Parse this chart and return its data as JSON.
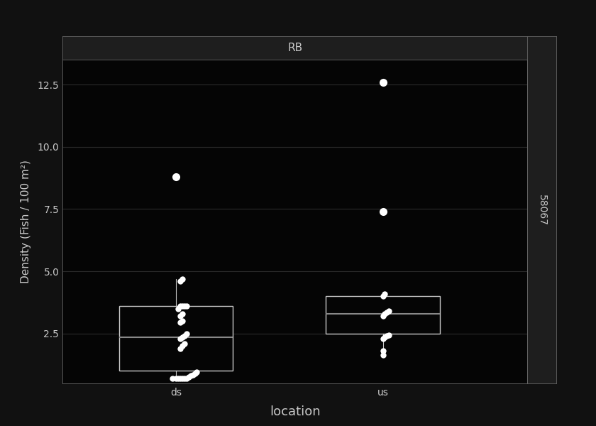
{
  "title_strip": "RB",
  "right_strip": "58067",
  "xlabel": "location",
  "ylabel": "Density (Fish / 100 m²)",
  "categories": [
    "ds",
    "us"
  ],
  "ylim": [
    0.5,
    13.5
  ],
  "yticks": [
    2.5,
    5.0,
    7.5,
    10.0,
    12.5
  ],
  "background_color": "#111111",
  "plot_bg_color": "#050505",
  "box_color": "#c8c8c8",
  "median_color": "#888888",
  "whisker_color": "#c8c8c8",
  "jitter_color": "#ffffff",
  "grid_color": "#2a2a2a",
  "text_color": "#c8c8c8",
  "strip_bg_color": "#1e1e1e",
  "strip_border_color": "#666666",
  "ds_box": {
    "q1": 1.0,
    "median": 2.35,
    "q3": 3.6,
    "whisker_low": 0.7,
    "whisker_high": 4.7,
    "outliers": [
      8.8
    ]
  },
  "us_box": {
    "q1": 2.5,
    "median": 3.3,
    "q3": 4.0,
    "whisker_low": 1.65,
    "whisker_high": 4.0,
    "outliers": [
      7.4,
      12.6
    ]
  },
  "ds_jitter_y": [
    0.7,
    0.7,
    0.7,
    0.7,
    0.7,
    0.7,
    0.7,
    0.75,
    0.8,
    0.85,
    0.9,
    0.95,
    1.9,
    2.0,
    2.1,
    2.3,
    2.35,
    2.4,
    2.5,
    2.95,
    3.0,
    3.2,
    3.3,
    3.5,
    3.6,
    3.6,
    3.6,
    3.6,
    4.6,
    4.7
  ],
  "ds_jitter_x": [
    0.98,
    1.0,
    1.01,
    1.02,
    1.03,
    1.04,
    1.05,
    1.06,
    1.07,
    1.08,
    1.09,
    1.1,
    1.02,
    1.03,
    1.04,
    1.02,
    1.03,
    1.04,
    1.05,
    1.02,
    1.03,
    1.02,
    1.03,
    1.01,
    1.02,
    1.03,
    1.04,
    1.05,
    1.02,
    1.03
  ],
  "us_jitter_y": [
    1.65,
    1.8,
    2.3,
    2.35,
    2.4,
    2.45,
    3.2,
    3.3,
    3.35,
    3.4,
    4.0,
    4.1
  ],
  "us_jitter_x": [
    2.0,
    2.0,
    2.0,
    2.01,
    2.02,
    2.03,
    2.0,
    2.01,
    2.02,
    2.03,
    2.0,
    2.01
  ]
}
